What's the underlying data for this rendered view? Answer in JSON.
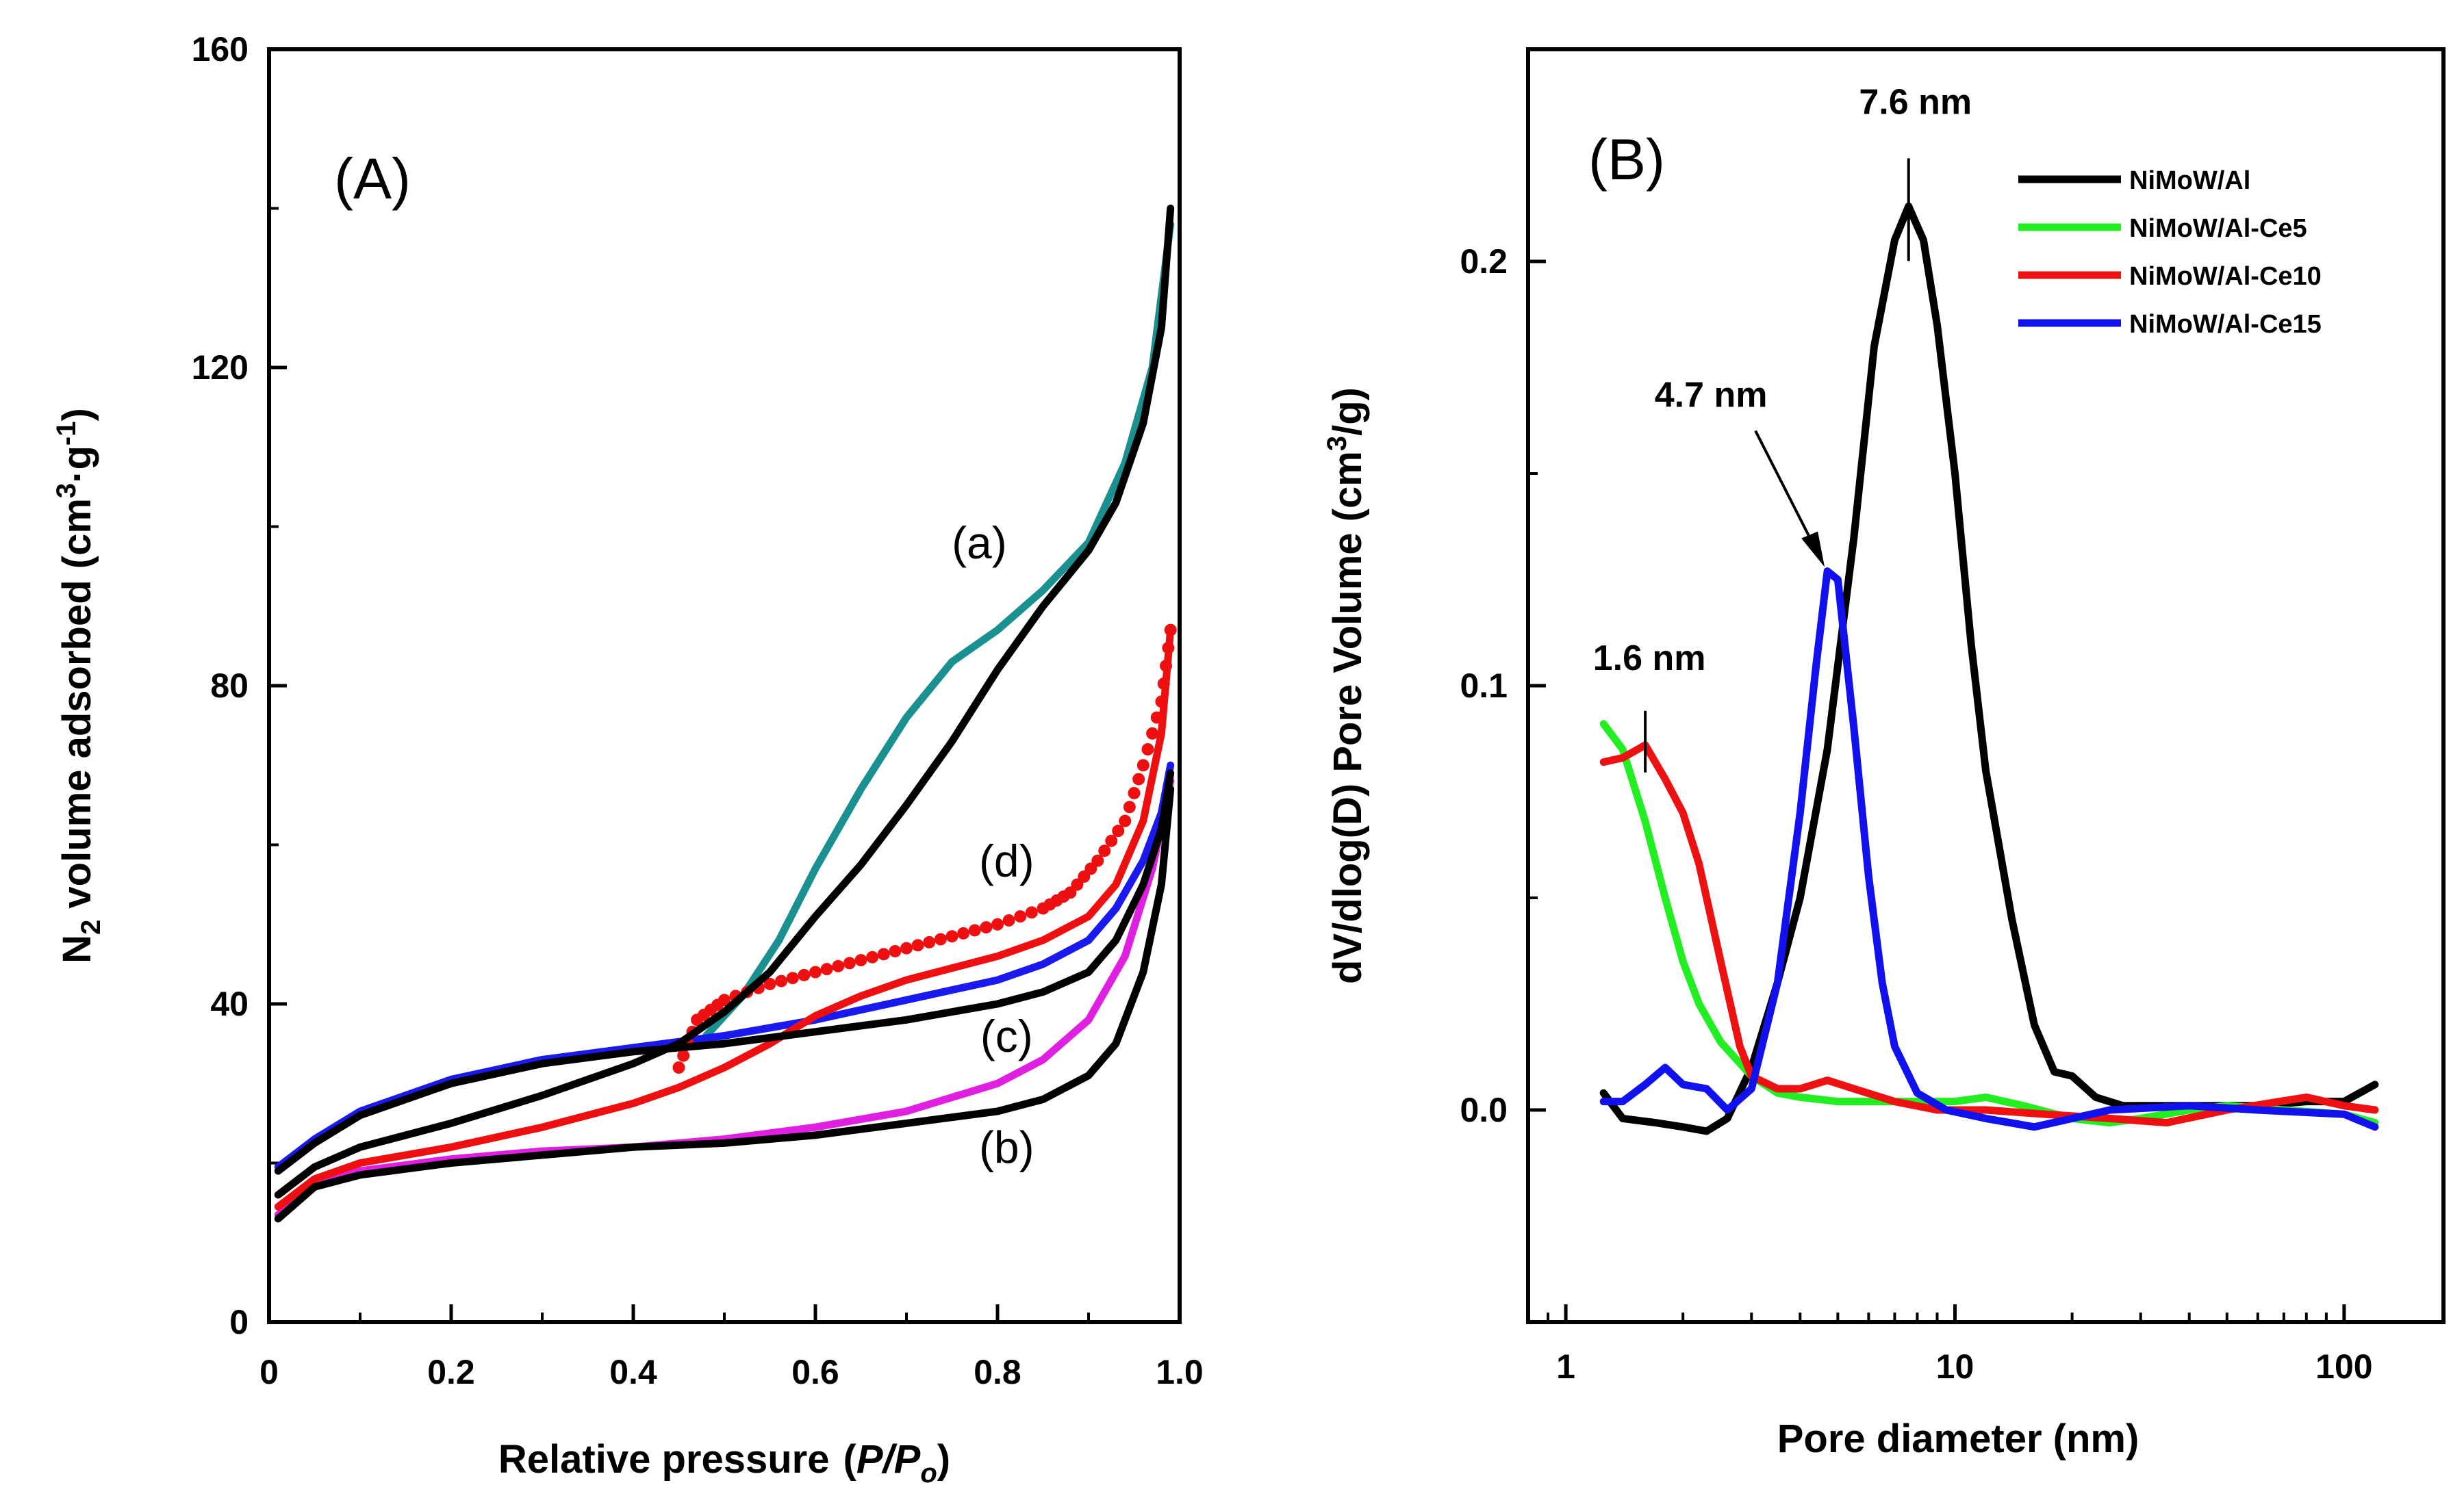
{
  "chart_data": [
    {
      "type": "line",
      "panel_label": "(A)",
      "xlabel": "Relative pressure",
      "xlabel_symbol": "P/P",
      "xlabel_sub": "o",
      "ylabel": "N2 volume adsorbed (cm3·g-1)",
      "xlim": [
        0,
        1.0
      ],
      "ylim": [
        0,
        160
      ],
      "xticks": [
        "0",
        "0.2",
        "0.4",
        "0.6",
        "0.8",
        "1.0"
      ],
      "xtick_values": [
        0,
        0.2,
        0.4,
        0.6,
        0.8,
        1.0
      ],
      "yticks": [
        "0",
        "40",
        "80",
        "120",
        "160"
      ],
      "ytick_values": [
        0,
        40,
        80,
        120,
        160
      ],
      "series": [
        {
          "name": "(a) adsorption",
          "color": "#000000",
          "points": [
            [
              0.01,
              16
            ],
            [
              0.05,
              19.5
            ],
            [
              0.1,
              22
            ],
            [
              0.2,
              25
            ],
            [
              0.3,
              28.5
            ],
            [
              0.4,
              32.5
            ],
            [
              0.45,
              35
            ],
            [
              0.5,
              39
            ],
            [
              0.55,
              44
            ],
            [
              0.6,
              51
            ],
            [
              0.65,
              57.5
            ],
            [
              0.7,
              65
            ],
            [
              0.75,
              73
            ],
            [
              0.8,
              82
            ],
            [
              0.85,
              90
            ],
            [
              0.9,
              97
            ],
            [
              0.93,
              103
            ],
            [
              0.96,
              113
            ],
            [
              0.98,
              125
            ],
            [
              0.99,
              140
            ]
          ]
        },
        {
          "name": "(a) desorption",
          "color": "#1a9090",
          "points": [
            [
              0.48,
              36
            ],
            [
              0.52,
              41
            ],
            [
              0.56,
              48
            ],
            [
              0.6,
              57
            ],
            [
              0.65,
              67
            ],
            [
              0.7,
              76
            ],
            [
              0.75,
              83
            ],
            [
              0.8,
              87
            ],
            [
              0.85,
              92
            ],
            [
              0.9,
              98
            ],
            [
              0.94,
              108
            ],
            [
              0.97,
              120
            ],
            [
              0.99,
              138
            ]
          ]
        },
        {
          "name": "(b) adsorption",
          "color": "#000000",
          "points": [
            [
              0.01,
              13
            ],
            [
              0.05,
              17
            ],
            [
              0.1,
              18.5
            ],
            [
              0.2,
              20
            ],
            [
              0.3,
              21
            ],
            [
              0.4,
              22
            ],
            [
              0.5,
              22.5
            ],
            [
              0.6,
              23.5
            ],
            [
              0.7,
              25
            ],
            [
              0.8,
              26.5
            ],
            [
              0.85,
              28
            ],
            [
              0.9,
              31
            ],
            [
              0.93,
              35
            ],
            [
              0.96,
              44
            ],
            [
              0.98,
              55
            ],
            [
              0.99,
              67
            ]
          ]
        },
        {
          "name": "(b) desorption",
          "color": "#e020e0",
          "points": [
            [
              0.01,
              13.5
            ],
            [
              0.05,
              17.5
            ],
            [
              0.1,
              19
            ],
            [
              0.2,
              20.5
            ],
            [
              0.3,
              21.5
            ],
            [
              0.4,
              22
            ],
            [
              0.5,
              23
            ],
            [
              0.6,
              24.5
            ],
            [
              0.7,
              26.5
            ],
            [
              0.8,
              30
            ],
            [
              0.85,
              33
            ],
            [
              0.9,
              38
            ],
            [
              0.94,
              46
            ],
            [
              0.97,
              57
            ],
            [
              0.99,
              68
            ]
          ]
        },
        {
          "name": "(c) adsorption",
          "color": "#000000",
          "points": [
            [
              0.01,
              19
            ],
            [
              0.05,
              22.5
            ],
            [
              0.1,
              26
            ],
            [
              0.2,
              30
            ],
            [
              0.3,
              32.5
            ],
            [
              0.4,
              34
            ],
            [
              0.5,
              35
            ],
            [
              0.6,
              36.5
            ],
            [
              0.7,
              38
            ],
            [
              0.8,
              40
            ],
            [
              0.85,
              41.5
            ],
            [
              0.9,
              44
            ],
            [
              0.93,
              48
            ],
            [
              0.96,
              55
            ],
            [
              0.98,
              62
            ],
            [
              0.99,
              69
            ]
          ]
        },
        {
          "name": "(c) desorption",
          "color": "#1a1aee",
          "points": [
            [
              0.01,
              19.5
            ],
            [
              0.05,
              23
            ],
            [
              0.1,
              26.5
            ],
            [
              0.2,
              30.5
            ],
            [
              0.3,
              33
            ],
            [
              0.4,
              34.5
            ],
            [
              0.5,
              36
            ],
            [
              0.6,
              38
            ],
            [
              0.7,
              40.5
            ],
            [
              0.8,
              43
            ],
            [
              0.85,
              45
            ],
            [
              0.9,
              48
            ],
            [
              0.93,
              52
            ],
            [
              0.96,
              58
            ],
            [
              0.98,
              64
            ],
            [
              0.99,
              70
            ]
          ]
        },
        {
          "name": "(d) adsorption",
          "color": "#ee1010",
          "points": [
            [
              0.01,
              14.5
            ],
            [
              0.05,
              18
            ],
            [
              0.1,
              20
            ],
            [
              0.2,
              22
            ],
            [
              0.3,
              24.5
            ],
            [
              0.4,
              27.5
            ],
            [
              0.45,
              29.5
            ],
            [
              0.5,
              32
            ],
            [
              0.55,
              35
            ],
            [
              0.6,
              38.5
            ],
            [
              0.65,
              41
            ],
            [
              0.7,
              43
            ],
            [
              0.8,
              46
            ],
            [
              0.85,
              48
            ],
            [
              0.9,
              51
            ],
            [
              0.93,
              55
            ],
            [
              0.96,
              63
            ],
            [
              0.98,
              74
            ],
            [
              0.99,
              87
            ]
          ]
        },
        {
          "name": "(d) desorption",
          "color": "#ee1010",
          "style": "dots",
          "points": [
            [
              0.45,
              32
            ],
            [
              0.47,
              38
            ],
            [
              0.5,
              40.5
            ],
            [
              0.55,
              42.5
            ],
            [
              0.6,
              44
            ],
            [
              0.65,
              45.5
            ],
            [
              0.7,
              47
            ],
            [
              0.75,
              48.5
            ],
            [
              0.8,
              50
            ],
            [
              0.85,
              52
            ],
            [
              0.88,
              54
            ],
            [
              0.91,
              58
            ],
            [
              0.94,
              63
            ],
            [
              0.96,
              70
            ],
            [
              0.98,
              78
            ],
            [
              0.99,
              87
            ]
          ]
        }
      ],
      "curve_labels": [
        {
          "text": "(a)",
          "x": 0.78,
          "y": 96
        },
        {
          "text": "(d)",
          "x": 0.81,
          "y": 56
        },
        {
          "text": "(c)",
          "x": 0.81,
          "y": 34
        },
        {
          "text": "(b)",
          "x": 0.81,
          "y": 20
        }
      ]
    },
    {
      "type": "line",
      "panel_label": "(B)",
      "xlabel": "Pore diameter (nm)",
      "ylabel": "dV/dlog(D) Pore Volume (cm3/g)",
      "xscale": "log",
      "xlim": [
        0.8,
        180
      ],
      "ylim": [
        -0.05,
        0.25
      ],
      "xticks": [
        "1",
        "10",
        "100"
      ],
      "xtick_values": [
        1,
        10,
        100
      ],
      "yticks": [
        "0.0",
        "0.1",
        "0.2"
      ],
      "ytick_values": [
        0,
        0.1,
        0.2
      ],
      "legend_position": "top-right",
      "series": [
        {
          "name": "NiMoW/Al",
          "color": "#000000",
          "points": [
            [
              1.25,
              0.004
            ],
            [
              1.4,
              -0.002
            ],
            [
              1.7,
              -0.003
            ],
            [
              2.0,
              -0.004
            ],
            [
              2.3,
              -0.005
            ],
            [
              2.6,
              -0.002
            ],
            [
              3.0,
              0.01
            ],
            [
              3.5,
              0.03
            ],
            [
              4.0,
              0.05
            ],
            [
              4.7,
              0.085
            ],
            [
              5.5,
              0.135
            ],
            [
              6.2,
              0.18
            ],
            [
              7.0,
              0.205
            ],
            [
              7.6,
              0.213
            ],
            [
              8.3,
              0.205
            ],
            [
              9.0,
              0.185
            ],
            [
              10,
              0.15
            ],
            [
              11,
              0.11
            ],
            [
              12,
              0.08
            ],
            [
              14,
              0.045
            ],
            [
              16,
              0.02
            ],
            [
              18,
              0.009
            ],
            [
              20,
              0.008
            ],
            [
              23,
              0.003
            ],
            [
              27,
              0.001
            ],
            [
              40,
              0.001
            ],
            [
              60,
              0.001
            ],
            [
              80,
              0.002
            ],
            [
              100,
              0.002
            ],
            [
              120,
              0.006
            ]
          ]
        },
        {
          "name": "NiMoW/Al-Ce5",
          "color": "#22ee22",
          "points": [
            [
              1.25,
              0.091
            ],
            [
              1.4,
              0.085
            ],
            [
              1.6,
              0.068
            ],
            [
              1.8,
              0.05
            ],
            [
              2.0,
              0.035
            ],
            [
              2.2,
              0.025
            ],
            [
              2.5,
              0.016
            ],
            [
              3.0,
              0.008
            ],
            [
              3.5,
              0.004
            ],
            [
              4.0,
              0.003
            ],
            [
              5,
              0.002
            ],
            [
              7,
              0.002
            ],
            [
              10,
              0.002
            ],
            [
              12,
              0.003
            ],
            [
              15,
              0.001
            ],
            [
              20,
              -0.002
            ],
            [
              25,
              -0.003
            ],
            [
              30,
              -0.002
            ],
            [
              40,
              0.0
            ],
            [
              50,
              0.001
            ],
            [
              70,
              0.0
            ],
            [
              100,
              -0.001
            ],
            [
              120,
              -0.003
            ]
          ]
        },
        {
          "name": "NiMoW/Al-Ce10",
          "color": "#ee1111",
          "points": [
            [
              1.25,
              0.082
            ],
            [
              1.4,
              0.083
            ],
            [
              1.6,
              0.086
            ],
            [
              1.8,
              0.078
            ],
            [
              2.0,
              0.07
            ],
            [
              2.2,
              0.058
            ],
            [
              2.5,
              0.035
            ],
            [
              2.8,
              0.015
            ],
            [
              3.0,
              0.008
            ],
            [
              3.5,
              0.005
            ],
            [
              4.0,
              0.005
            ],
            [
              4.7,
              0.007
            ],
            [
              5.5,
              0.005
            ],
            [
              7,
              0.002
            ],
            [
              9,
              0.0
            ],
            [
              12,
              0.0
            ],
            [
              17,
              -0.001
            ],
            [
              25,
              -0.002
            ],
            [
              35,
              -0.003
            ],
            [
              50,
              0.0
            ],
            [
              80,
              0.003
            ],
            [
              100,
              0.001
            ],
            [
              120,
              0.0
            ]
          ]
        },
        {
          "name": "NiMoW/Al-Ce15",
          "color": "#1111ee",
          "points": [
            [
              1.25,
              0.002
            ],
            [
              1.4,
              0.002
            ],
            [
              1.6,
              0.006
            ],
            [
              1.8,
              0.01
            ],
            [
              2.0,
              0.006
            ],
            [
              2.3,
              0.005
            ],
            [
              2.6,
              0.0
            ],
            [
              3.0,
              0.005
            ],
            [
              3.5,
              0.03
            ],
            [
              4.0,
              0.07
            ],
            [
              4.4,
              0.105
            ],
            [
              4.7,
              0.127
            ],
            [
              5.0,
              0.125
            ],
            [
              5.5,
              0.09
            ],
            [
              6.0,
              0.055
            ],
            [
              6.5,
              0.03
            ],
            [
              7.0,
              0.015
            ],
            [
              8.0,
              0.004
            ],
            [
              9.5,
              0.0
            ],
            [
              12,
              -0.002
            ],
            [
              16,
              -0.004
            ],
            [
              20,
              -0.002
            ],
            [
              25,
              0.0
            ],
            [
              40,
              0.001
            ],
            [
              60,
              0.0
            ],
            [
              100,
              -0.001
            ],
            [
              120,
              -0.004
            ]
          ]
        }
      ],
      "annotations": [
        {
          "text": "7.6 nm",
          "x": 7.6,
          "y": 0.213
        },
        {
          "text": "4.7 nm",
          "x": 4.7,
          "y": 0.127
        },
        {
          "text": "1.6 nm",
          "x": 1.6,
          "y": 0.086
        }
      ]
    }
  ]
}
